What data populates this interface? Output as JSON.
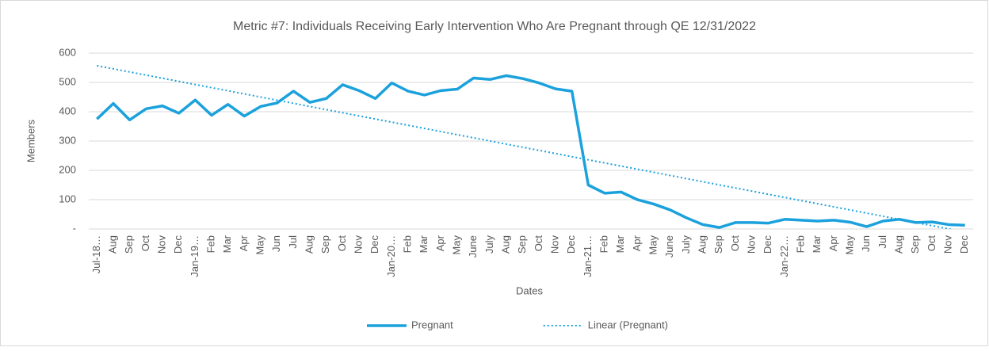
{
  "chart_data": {
    "type": "line",
    "title": "Metric #7: Individuals Receiving Early Intervention Who Are Pregnant through QE 12/31/2022",
    "x_label": "Dates",
    "y_label": "Members",
    "categories": [
      "Jul-18…",
      "Aug",
      "Sep",
      "Oct",
      "Nov",
      "Dec",
      "Jan-19…",
      "Feb",
      "Mar",
      "Apr",
      "May",
      "Jun",
      "Jul",
      "Aug",
      "Sep",
      "Oct",
      "Nov",
      "Dec",
      "Jan-20…",
      "Feb",
      "Mar",
      "Apr",
      "May",
      "June",
      "July",
      "Aug",
      "Sep",
      "Oct",
      "Nov",
      "Dec",
      "Jan-21…",
      "Feb",
      "Mar",
      "Apr",
      "May",
      "June",
      "July",
      "Aug",
      "Sep",
      "Oct",
      "Nov",
      "Dec",
      "Jan-22…",
      "Feb",
      "Mar",
      "Apr",
      "May",
      "Jun",
      "Jul",
      "Aug",
      "Sep",
      "Oct",
      "Nov",
      "Dec"
    ],
    "series": [
      {
        "name": "Pregnant",
        "color": "#1ba1dc",
        "dash": false,
        "values": [
          375,
          428,
          372,
          410,
          420,
          395,
          440,
          388,
          425,
          385,
          418,
          430,
          470,
          432,
          445,
          492,
          472,
          445,
          498,
          470,
          457,
          472,
          477,
          515,
          510,
          523,
          513,
          498,
          478,
          470,
          150,
          122,
          126,
          100,
          85,
          65,
          38,
          15,
          5,
          22,
          22,
          20,
          33,
          30,
          27,
          30,
          23,
          8,
          27,
          33,
          22,
          24,
          15,
          13
        ]
      },
      {
        "name": "Linear (Pregnant)",
        "color": "#1ba1dc",
        "dash": true,
        "values": [
          557,
          546.3,
          535.6,
          524.9,
          514.2,
          503.5,
          492.8,
          482.1,
          471.4,
          460.7,
          450,
          439.3,
          428.6,
          417.9,
          407.2,
          396.5,
          385.8,
          375.1,
          364.4,
          353.7,
          343,
          332.3,
          321.6,
          310.9,
          300.2,
          289.5,
          278.8,
          268.1,
          257.4,
          246.7,
          236,
          225.3,
          214.6,
          203.9,
          193.2,
          182.5,
          171.8,
          161.1,
          150.4,
          139.7,
          129,
          118.3,
          107.6,
          96.9,
          86.2,
          75.5,
          64.8,
          54.1,
          43.4,
          32.7,
          22,
          11.3,
          0.6,
          -10.1
        ]
      }
    ],
    "ylim": [
      0,
      600
    ],
    "yticks": [
      {
        "value": 0,
        "label": "-"
      },
      100,
      200,
      300,
      400,
      500,
      600
    ],
    "grid": true,
    "legend": "bottom"
  }
}
